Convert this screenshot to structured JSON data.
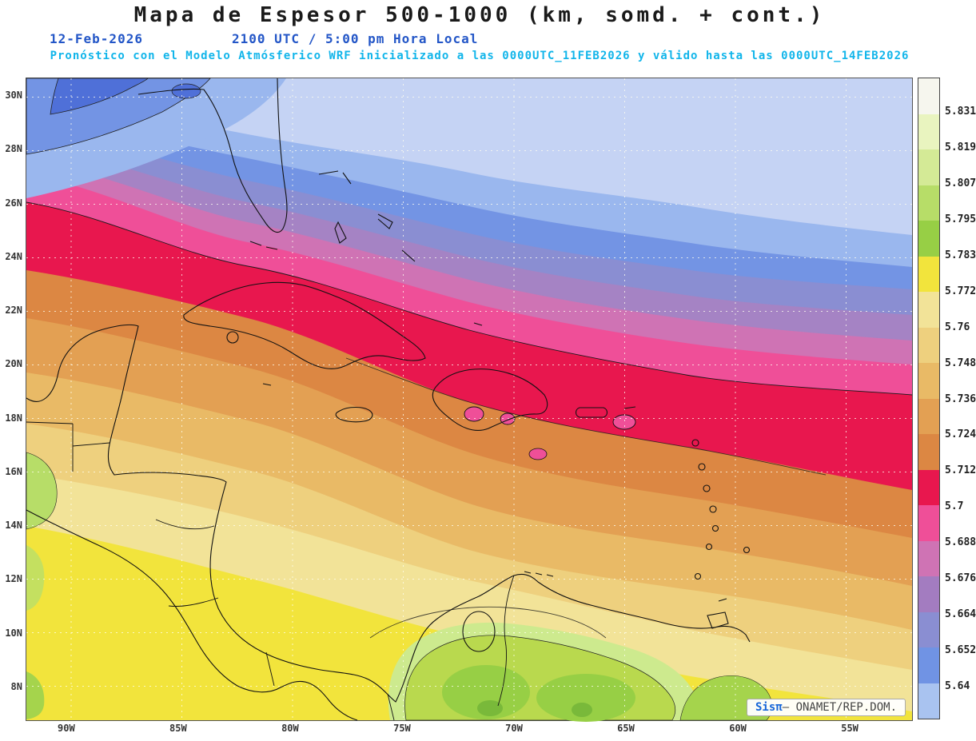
{
  "header": {
    "title": "Mapa de Espesor 500-1000 (km, somd. + cont.)",
    "date": "12-Feb-2026",
    "time_local": "2100 UTC / 5:00 pm Hora Local",
    "forecast_note": "Pronóstico con el Modelo Atmósferico WRF inicializado a las 0000UTC_11FEB2026 y válido hasta las  0000UTC_14FEB2026"
  },
  "map": {
    "lat_labels": [
      "30N",
      "28N",
      "26N",
      "24N",
      "22N",
      "20N",
      "18N",
      "16N",
      "14N",
      "12N",
      "10N",
      "8N"
    ],
    "lon_labels": [
      "90W",
      "85W",
      "80W",
      "75W",
      "70W",
      "65W",
      "60W",
      "55W"
    ]
  },
  "colorbar": {
    "labels": [
      "5.831",
      "5.819",
      "5.807",
      "5.795",
      "5.783",
      "5.772",
      "5.76",
      "5.748",
      "5.736",
      "5.724",
      "5.712",
      "5.7",
      "5.688",
      "5.676",
      "5.664",
      "5.652",
      "5.64"
    ],
    "colors": [
      "#f6f6ee",
      "#e9f4bf",
      "#d4ea96",
      "#b7dd68",
      "#97cf45",
      "#f2e43c",
      "#f2e398",
      "#eed07e",
      "#e9ba66",
      "#e3a053",
      "#dc8743",
      "#e8174e",
      "#ef4f98",
      "#cf73b4",
      "#a37cc0",
      "#8a8ed2",
      "#7093e4",
      "#a9c3f0"
    ]
  },
  "attribution": {
    "brand": "Sisπ",
    "separator": "— ",
    "org": "ONAMET/REP.DOM."
  },
  "accent_colors": {
    "date_blue": "#2356c7",
    "note_cyan": "#11b5ea",
    "crimson_band": "#e8174e"
  }
}
